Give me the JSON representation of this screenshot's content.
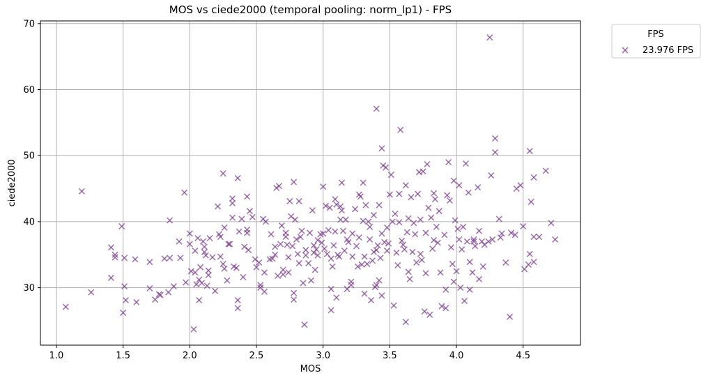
{
  "chart_data": {
    "type": "scatter",
    "title": "MOS vs ciede2000 (temporal pooling: norm_lp1) - FPS",
    "xlabel": "MOS",
    "ylabel": "ciede2000",
    "xlim": [
      0.88,
      4.93
    ],
    "ylim": [
      21.3,
      70.4
    ],
    "xticks": [
      1.0,
      1.5,
      2.0,
      2.5,
      3.0,
      3.5,
      4.0,
      4.5
    ],
    "xtick_labels": [
      "1.0",
      "1.5",
      "2.0",
      "2.5",
      "3.0",
      "3.5",
      "4.0",
      "4.5"
    ],
    "yticks": [
      30,
      40,
      50,
      60,
      70
    ],
    "ytick_labels": [
      "30",
      "40",
      "50",
      "60",
      "70"
    ],
    "grid": true,
    "legend": {
      "title": "FPS",
      "placement": "outside-top-right"
    },
    "colors": {
      "series": "#7b3f8c"
    },
    "marker": "x",
    "series": [
      {
        "name": "23.976 FPS",
        "points": [
          [
            1.07,
            27.1
          ],
          [
            1.19,
            44.6
          ],
          [
            1.26,
            29.3
          ],
          [
            1.41,
            36.1
          ],
          [
            1.41,
            31.5
          ],
          [
            1.44,
            35.0
          ],
          [
            1.44,
            34.6
          ],
          [
            1.49,
            39.3
          ],
          [
            1.5,
            26.2
          ],
          [
            1.51,
            34.5
          ],
          [
            1.51,
            30.2
          ],
          [
            1.52,
            28.1
          ],
          [
            1.59,
            34.3
          ],
          [
            1.6,
            27.8
          ],
          [
            1.7,
            33.9
          ],
          [
            1.7,
            29.9
          ],
          [
            1.74,
            28.2
          ],
          [
            1.77,
            29.0
          ],
          [
            1.78,
            28.9
          ],
          [
            1.81,
            34.4
          ],
          [
            1.84,
            29.3
          ],
          [
            1.85,
            40.2
          ],
          [
            1.85,
            34.5
          ],
          [
            1.88,
            30.2
          ],
          [
            1.92,
            37.0
          ],
          [
            1.93,
            34.5
          ],
          [
            1.96,
            44.4
          ],
          [
            1.97,
            30.8
          ],
          [
            2.0,
            38.2
          ],
          [
            2.0,
            36.6
          ],
          [
            2.01,
            32.5
          ],
          [
            2.03,
            23.7
          ],
          [
            2.04,
            35.6
          ],
          [
            2.04,
            32.3
          ],
          [
            2.05,
            30.5
          ],
          [
            2.06,
            37.5
          ],
          [
            2.07,
            28.1
          ],
          [
            2.07,
            31.2
          ],
          [
            2.08,
            33.1
          ],
          [
            2.09,
            30.7
          ],
          [
            2.1,
            37.0
          ],
          [
            2.11,
            35.4
          ],
          [
            2.11,
            36.2
          ],
          [
            2.12,
            34.9
          ],
          [
            2.13,
            30.3
          ],
          [
            2.14,
            32.6
          ],
          [
            2.14,
            31.9
          ],
          [
            2.15,
            37.5
          ],
          [
            2.17,
            34.6
          ],
          [
            2.19,
            29.5
          ],
          [
            2.21,
            42.3
          ],
          [
            2.22,
            38.1
          ],
          [
            2.23,
            37.7
          ],
          [
            2.23,
            34.7
          ],
          [
            2.25,
            47.3
          ],
          [
            2.25,
            33.6
          ],
          [
            2.26,
            39.1
          ],
          [
            2.26,
            32.9
          ],
          [
            2.28,
            31.1
          ],
          [
            2.29,
            36.6
          ],
          [
            2.3,
            36.6
          ],
          [
            2.32,
            40.6
          ],
          [
            2.32,
            43.5
          ],
          [
            2.32,
            42.8
          ],
          [
            2.33,
            33.2
          ],
          [
            2.35,
            33.0
          ],
          [
            2.36,
            28.1
          ],
          [
            2.36,
            26.9
          ],
          [
            2.36,
            46.6
          ],
          [
            2.37,
            38.5
          ],
          [
            2.39,
            40.4
          ],
          [
            2.4,
            31.6
          ],
          [
            2.41,
            36.2
          ],
          [
            2.43,
            38.8
          ],
          [
            2.43,
            38.3
          ],
          [
            2.43,
            43.8
          ],
          [
            2.44,
            35.7
          ],
          [
            2.45,
            41.6
          ],
          [
            2.47,
            40.7
          ],
          [
            2.49,
            34.3
          ],
          [
            2.5,
            33.1
          ],
          [
            2.52,
            33.8
          ],
          [
            2.53,
            30.4
          ],
          [
            2.53,
            30.0
          ],
          [
            2.55,
            40.4
          ],
          [
            2.56,
            32.3
          ],
          [
            2.56,
            29.4
          ],
          [
            2.57,
            40.0
          ],
          [
            2.6,
            34.3
          ],
          [
            2.61,
            38.1
          ],
          [
            2.62,
            34.4
          ],
          [
            2.64,
            36.2
          ],
          [
            2.64,
            35.0
          ],
          [
            2.65,
            45.1
          ],
          [
            2.66,
            31.8
          ],
          [
            2.67,
            45.4
          ],
          [
            2.68,
            36.6
          ],
          [
            2.69,
            39.4
          ],
          [
            2.7,
            32.7
          ],
          [
            2.7,
            32.0
          ],
          [
            2.72,
            38.3
          ],
          [
            2.72,
            37.7
          ],
          [
            2.73,
            36.5
          ],
          [
            2.74,
            34.6
          ],
          [
            2.74,
            32.3
          ],
          [
            2.75,
            43.1
          ],
          [
            2.76,
            40.8
          ],
          [
            2.77,
            36.3
          ],
          [
            2.78,
            46.0
          ],
          [
            2.78,
            29.2
          ],
          [
            2.78,
            28.2
          ],
          [
            2.79,
            40.3
          ],
          [
            2.8,
            37.3
          ],
          [
            2.81,
            35.1
          ],
          [
            2.82,
            43.1
          ],
          [
            2.82,
            33.7
          ],
          [
            2.83,
            37.7
          ],
          [
            2.84,
            38.6
          ],
          [
            2.85,
            30.7
          ],
          [
            2.86,
            24.4
          ],
          [
            2.87,
            35.7
          ],
          [
            2.87,
            34.9
          ],
          [
            2.89,
            33.7
          ],
          [
            2.9,
            38.3
          ],
          [
            2.91,
            31.1
          ],
          [
            2.92,
            41.7
          ],
          [
            2.93,
            36.4
          ],
          [
            2.93,
            35.3
          ],
          [
            2.94,
            32.7
          ],
          [
            2.95,
            35.8
          ],
          [
            2.96,
            37.2
          ],
          [
            2.96,
            34.9
          ],
          [
            2.98,
            38.1
          ],
          [
            2.99,
            36.8
          ],
          [
            3.0,
            45.3
          ],
          [
            3.0,
            38.2
          ],
          [
            3.01,
            35.9
          ],
          [
            3.02,
            42.4
          ],
          [
            3.03,
            35.1
          ],
          [
            3.04,
            38.7
          ],
          [
            3.05,
            42.1
          ],
          [
            3.06,
            26.6
          ],
          [
            3.06,
            29.8
          ],
          [
            3.06,
            34.4
          ],
          [
            3.07,
            33.2
          ],
          [
            3.08,
            36.4
          ],
          [
            3.09,
            43.4
          ],
          [
            3.09,
            38.5
          ],
          [
            3.1,
            42.6
          ],
          [
            3.1,
            28.5
          ],
          [
            3.11,
            35.0
          ],
          [
            3.12,
            34.7
          ],
          [
            3.13,
            42.3
          ],
          [
            3.13,
            40.3
          ],
          [
            3.14,
            45.9
          ],
          [
            3.14,
            41.7
          ],
          [
            3.15,
            38.6
          ],
          [
            3.16,
            35.6
          ],
          [
            3.17,
            40.3
          ],
          [
            3.18,
            37.3
          ],
          [
            3.18,
            29.8
          ],
          [
            3.19,
            36.9
          ],
          [
            3.21,
            30.4
          ],
          [
            3.21,
            30.9
          ],
          [
            3.22,
            34.7
          ],
          [
            3.22,
            38.2
          ],
          [
            3.24,
            41.9
          ],
          [
            3.25,
            36.3
          ],
          [
            3.26,
            33.2
          ],
          [
            3.27,
            44.1
          ],
          [
            3.27,
            37.6
          ],
          [
            3.28,
            43.8
          ],
          [
            3.29,
            33.5
          ],
          [
            3.3,
            45.9
          ],
          [
            3.3,
            40.1
          ],
          [
            3.31,
            29.1
          ],
          [
            3.31,
            34.7
          ],
          [
            3.32,
            42.5
          ],
          [
            3.33,
            33.6
          ],
          [
            3.34,
            40.0
          ],
          [
            3.35,
            39.2
          ],
          [
            3.35,
            37.3
          ],
          [
            3.36,
            28.1
          ],
          [
            3.37,
            34.1
          ],
          [
            3.38,
            41.0
          ],
          [
            3.38,
            35.4
          ],
          [
            3.39,
            30.1
          ],
          [
            3.4,
            57.1
          ],
          [
            3.4,
            30.4
          ],
          [
            3.4,
            35.7
          ],
          [
            3.41,
            36.4
          ],
          [
            3.42,
            42.5
          ],
          [
            3.42,
            31.1
          ],
          [
            3.43,
            34.5
          ],
          [
            3.44,
            51.1
          ],
          [
            3.44,
            38.2
          ],
          [
            3.44,
            28.8
          ],
          [
            3.45,
            48.5
          ],
          [
            3.46,
            36.9
          ],
          [
            3.47,
            48.2
          ],
          [
            3.48,
            35.6
          ],
          [
            3.48,
            39.1
          ],
          [
            3.49,
            36.7
          ],
          [
            3.5,
            44.1
          ],
          [
            3.51,
            47.1
          ],
          [
            3.52,
            40.0
          ],
          [
            3.53,
            27.3
          ],
          [
            3.54,
            41.2
          ],
          [
            3.55,
            35.3
          ],
          [
            3.56,
            33.4
          ],
          [
            3.57,
            44.2
          ],
          [
            3.57,
            39.9
          ],
          [
            3.58,
            53.9
          ],
          [
            3.59,
            37.1
          ],
          [
            3.6,
            36.5
          ],
          [
            3.61,
            35.8
          ],
          [
            3.62,
            24.8
          ],
          [
            3.62,
            45.5
          ],
          [
            3.63,
            38.4
          ],
          [
            3.64,
            40.5
          ],
          [
            3.64,
            32.4
          ],
          [
            3.65,
            31.3
          ],
          [
            3.66,
            43.7
          ],
          [
            3.67,
            35.4
          ],
          [
            3.68,
            39.8
          ],
          [
            3.69,
            38.1
          ],
          [
            3.7,
            33.8
          ],
          [
            3.71,
            44.2
          ],
          [
            3.72,
            47.5
          ],
          [
            3.73,
            40.3
          ],
          [
            3.73,
            35.1
          ],
          [
            3.74,
            34.2
          ],
          [
            3.75,
            47.6
          ],
          [
            3.76,
            26.4
          ],
          [
            3.77,
            32.2
          ],
          [
            3.77,
            38.3
          ],
          [
            3.78,
            48.7
          ],
          [
            3.79,
            42.1
          ],
          [
            3.8,
            25.9
          ],
          [
            3.81,
            40.6
          ],
          [
            3.82,
            35.9
          ],
          [
            3.83,
            44.3
          ],
          [
            3.83,
            37.2
          ],
          [
            3.84,
            43.4
          ],
          [
            3.85,
            39.2
          ],
          [
            3.86,
            36.8
          ],
          [
            3.87,
            41.6
          ],
          [
            3.88,
            32.3
          ],
          [
            3.89,
            27.2
          ],
          [
            3.91,
            38.0
          ],
          [
            3.92,
            29.7
          ],
          [
            3.92,
            26.9
          ],
          [
            3.93,
            44.0
          ],
          [
            3.94,
            49.0
          ],
          [
            3.95,
            43.2
          ],
          [
            3.96,
            36.1
          ],
          [
            3.97,
            33.6
          ],
          [
            3.98,
            30.9
          ],
          [
            3.98,
            46.2
          ],
          [
            3.99,
            40.2
          ],
          [
            4.0,
            32.5
          ],
          [
            4.01,
            38.9
          ],
          [
            4.02,
            37.3
          ],
          [
            4.02,
            45.5
          ],
          [
            4.03,
            30.0
          ],
          [
            4.04,
            35.8
          ],
          [
            4.05,
            39.2
          ],
          [
            4.06,
            28.0
          ],
          [
            4.07,
            48.8
          ],
          [
            4.08,
            37.0
          ],
          [
            4.09,
            44.4
          ],
          [
            4.1,
            33.9
          ],
          [
            4.1,
            29.7
          ],
          [
            4.12,
            32.3
          ],
          [
            4.13,
            37.3
          ],
          [
            4.13,
            37.0
          ],
          [
            4.14,
            36.3
          ],
          [
            4.16,
            45.2
          ],
          [
            4.17,
            31.3
          ],
          [
            4.17,
            38.6
          ],
          [
            4.19,
            37.0
          ],
          [
            4.2,
            33.2
          ],
          [
            4.21,
            36.5
          ],
          [
            4.24,
            37.0
          ],
          [
            4.25,
            67.9
          ],
          [
            4.26,
            47.0
          ],
          [
            4.27,
            37.3
          ],
          [
            4.29,
            52.6
          ],
          [
            4.29,
            50.5
          ],
          [
            4.32,
            40.4
          ],
          [
            4.33,
            37.6
          ],
          [
            4.34,
            38.2
          ],
          [
            4.37,
            33.8
          ],
          [
            4.4,
            25.6
          ],
          [
            4.41,
            38.3
          ],
          [
            4.44,
            38.0
          ],
          [
            4.45,
            45.0
          ],
          [
            4.48,
            45.5
          ],
          [
            4.5,
            39.3
          ],
          [
            4.51,
            32.8
          ],
          [
            4.54,
            33.5
          ],
          [
            4.55,
            35.1
          ],
          [
            4.55,
            50.7
          ],
          [
            4.56,
            43.0
          ],
          [
            4.58,
            46.7
          ],
          [
            4.58,
            37.7
          ],
          [
            4.58,
            33.9
          ],
          [
            4.62,
            37.7
          ],
          [
            4.67,
            47.7
          ],
          [
            4.71,
            39.8
          ],
          [
            4.74,
            37.3
          ]
        ]
      }
    ]
  }
}
